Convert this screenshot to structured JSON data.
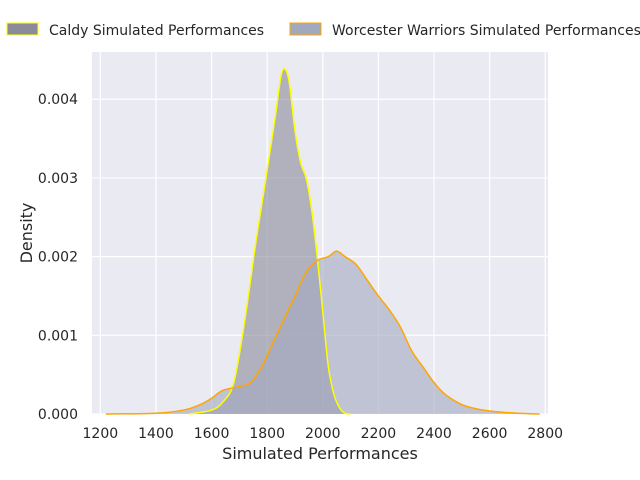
{
  "chart_data": {
    "type": "area",
    "xlabel": "Simulated Performances",
    "ylabel": "Density",
    "xlim": [
      1170,
      2810
    ],
    "ylim": [
      0,
      0.0046
    ],
    "x_ticks": [
      1200,
      1400,
      1600,
      1800,
      2000,
      2200,
      2400,
      2600,
      2800
    ],
    "y_ticks": [
      0.0,
      0.001,
      0.002,
      0.003,
      0.004
    ],
    "y_tick_labels": [
      "0.000",
      "0.001",
      "0.002",
      "0.003",
      "0.004"
    ],
    "grid": true,
    "legend_position": "top",
    "series": [
      {
        "name": "Caldy Simulated Performances",
        "fill": "#8b8b9a",
        "outline": "#ffff00",
        "points": [
          [
            1520,
            0.0
          ],
          [
            1600,
            5e-05
          ],
          [
            1640,
            0.00015
          ],
          [
            1680,
            0.0004
          ],
          [
            1720,
            0.0012
          ],
          [
            1760,
            0.0022
          ],
          [
            1800,
            0.0031
          ],
          [
            1830,
            0.0038
          ],
          [
            1850,
            0.0043
          ],
          [
            1865,
            0.00438
          ],
          [
            1880,
            0.0042
          ],
          [
            1900,
            0.0036
          ],
          [
            1920,
            0.0032
          ],
          [
            1940,
            0.003
          ],
          [
            1960,
            0.0026
          ],
          [
            1980,
            0.002
          ],
          [
            2000,
            0.0013
          ],
          [
            2020,
            0.0006
          ],
          [
            2040,
            0.00025
          ],
          [
            2060,
            8e-05
          ],
          [
            2080,
            1e-05
          ],
          [
            2100,
            0.0
          ]
        ]
      },
      {
        "name": "Worcester Warriors Simulated Performances",
        "fill": "#a1a9be",
        "outline": "#ffa500",
        "points": [
          [
            1220,
            0.0
          ],
          [
            1400,
            1e-05
          ],
          [
            1500,
            5e-05
          ],
          [
            1560,
            0.00012
          ],
          [
            1600,
            0.0002
          ],
          [
            1640,
            0.0003
          ],
          [
            1700,
            0.00035
          ],
          [
            1740,
            0.0004
          ],
          [
            1780,
            0.0006
          ],
          [
            1820,
            0.0009
          ],
          [
            1860,
            0.0012
          ],
          [
            1900,
            0.0015
          ],
          [
            1940,
            0.0018
          ],
          [
            1980,
            0.00195
          ],
          [
            2020,
            0.002
          ],
          [
            2050,
            0.00207
          ],
          [
            2080,
            0.002
          ],
          [
            2120,
            0.0019
          ],
          [
            2160,
            0.0017
          ],
          [
            2200,
            0.0015
          ],
          [
            2240,
            0.00132
          ],
          [
            2280,
            0.0011
          ],
          [
            2320,
            0.0008
          ],
          [
            2360,
            0.0006
          ],
          [
            2400,
            0.0004
          ],
          [
            2440,
            0.00025
          ],
          [
            2500,
            0.00012
          ],
          [
            2560,
            6e-05
          ],
          [
            2620,
            3e-05
          ],
          [
            2700,
            1e-05
          ],
          [
            2780,
            0.0
          ]
        ]
      }
    ]
  }
}
